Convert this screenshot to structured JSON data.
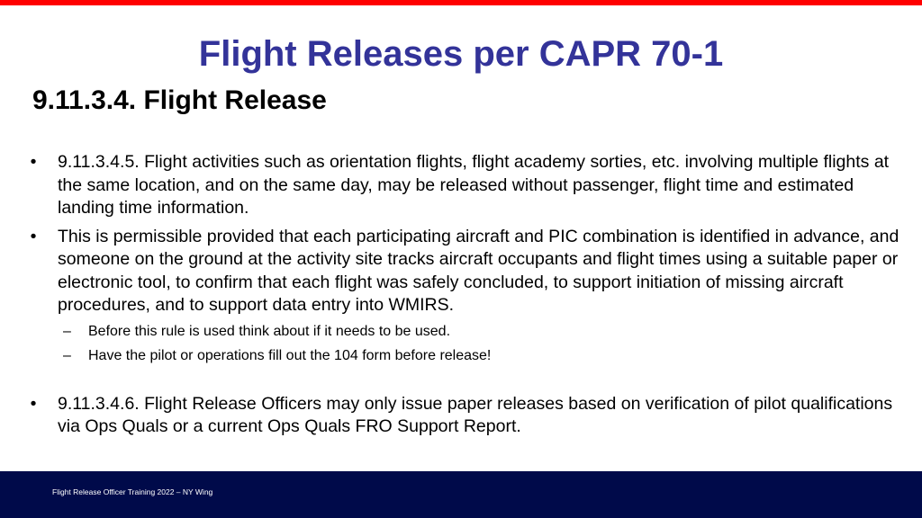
{
  "slide": {
    "title": "Flight Releases per CAPR 70-1",
    "subtitle": "9.11.3.4. Flight Release",
    "bullet_marker": "•",
    "dash_marker": "–",
    "bullets": [
      "9.11.3.4.5. Flight activities such as orientation flights, flight academy sorties, etc. involving multiple flights at the same location, and on the same day, may be released without passenger, flight time and estimated landing time information.",
      "This is permissible provided that each participating aircraft and PIC combination is identified in advance, and someone on the ground at the activity site tracks aircraft occupants and flight times using a suitable paper or electronic tool, to confirm that each flight was safely concluded, to support initiation of missing aircraft procedures, and to support data entry into WMIRS.",
      "9.11.3.4.6. Flight Release Officers may only issue paper releases based on verification of pilot qualifications via Ops Quals or a current Ops Quals FRO Support Report."
    ],
    "sub_bullets": [
      "Before this rule is used think about if it needs to be used.",
      "Have the pilot or operations fill out the 104 form before release!"
    ],
    "footer": "Flight Release Officer Training 2022 – NY Wing"
  },
  "colors": {
    "top_bar": "#ff0000",
    "title": "#333399",
    "footer_bg": "#000a4a"
  }
}
